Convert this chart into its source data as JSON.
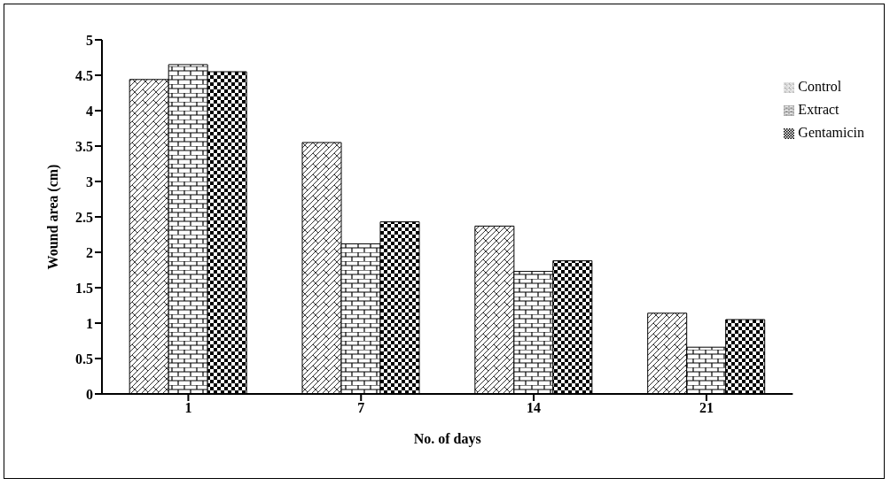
{
  "chart_data": {
    "type": "bar",
    "xlabel": "No. of days",
    "ylabel": "Wound area (cm)",
    "categories": [
      "1",
      "7",
      "14",
      "21"
    ],
    "series": [
      {
        "name": "Control",
        "color": "#000000",
        "values": [
          4.44,
          3.55,
          2.37,
          1.14
        ]
      },
      {
        "name": "Extract",
        "color": "#000000",
        "values": [
          4.65,
          2.12,
          1.73,
          0.66
        ]
      },
      {
        "name": "Gentamicin",
        "color": "#000000",
        "values": [
          4.55,
          2.43,
          1.88,
          1.05
        ]
      }
    ],
    "ylim": [
      0,
      5
    ],
    "yticks": [
      0,
      0.5,
      1,
      1.5,
      2,
      2.5,
      3,
      3.5,
      4,
      4.5,
      5
    ],
    "grid": false,
    "legend": "top right"
  }
}
